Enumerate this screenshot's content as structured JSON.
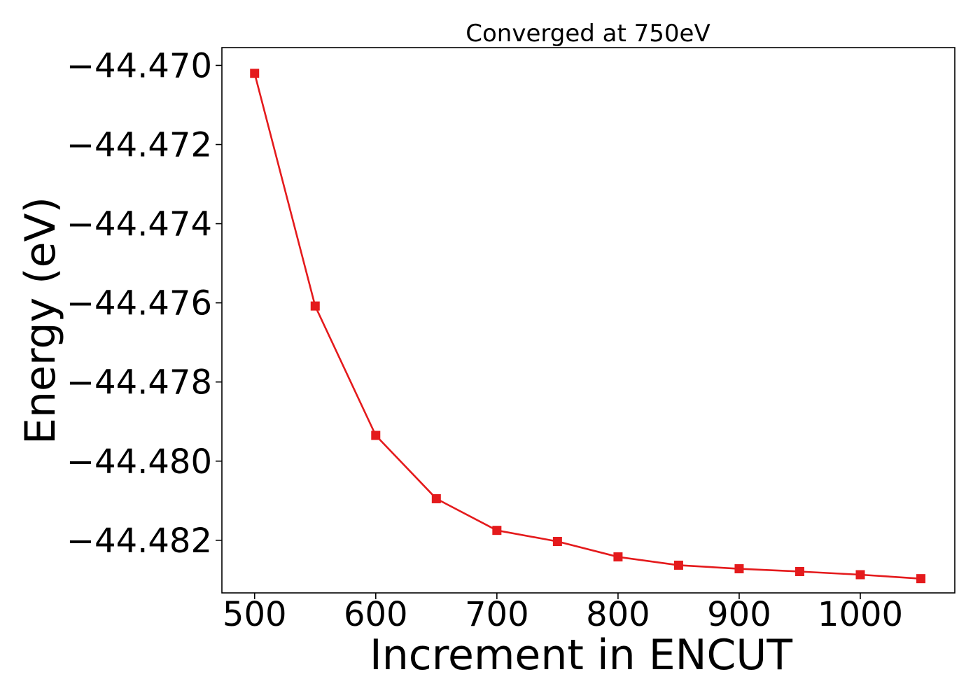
{
  "chart_data": {
    "type": "line",
    "title": "Converged at 750eV",
    "xlabel": "Increment in ENCUT",
    "ylabel": "Energy (eV)",
    "x": [
      500,
      550,
      600,
      650,
      700,
      750,
      800,
      850,
      900,
      950,
      1000,
      1050
    ],
    "series": [
      {
        "values": [
          -44.4702,
          -44.47608,
          -44.47935,
          -44.48095,
          -44.48175,
          -44.48203,
          -44.48242,
          -44.48263,
          -44.48272,
          -44.48279,
          -44.48287,
          -44.48297
        ],
        "color": "#e41a1c",
        "marker": "square"
      }
    ],
    "xlim": [
      473,
      1078
    ],
    "ylim": [
      -44.48333,
      -44.46955
    ],
    "xticks": [
      500,
      600,
      700,
      800,
      900,
      1000
    ],
    "xtick_labels": [
      "500",
      "600",
      "700",
      "800",
      "900",
      "1000"
    ],
    "yticks": [
      -44.47,
      -44.472,
      -44.474,
      -44.476,
      -44.478,
      -44.48,
      -44.482
    ],
    "ytick_labels": [
      "−44.470",
      "−44.472",
      "−44.474",
      "−44.476",
      "−44.478",
      "−44.480",
      "−44.482"
    ],
    "grid": false,
    "legend": "none"
  }
}
